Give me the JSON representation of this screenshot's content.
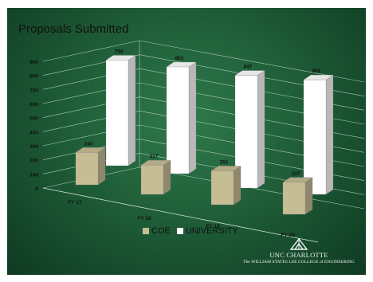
{
  "chart_data": {
    "type": "bar",
    "title": "Proposals Submitted",
    "categories": [
      "FY 17",
      "FY 18",
      "FY 19",
      "FY 20"
    ],
    "series": [
      {
        "name": "COE",
        "values": [
          240,
          217,
          251,
          237
        ],
        "color": "#c7bd95"
      },
      {
        "name": "UNIVERSITY",
        "values": [
          794,
          803,
          847,
          862
        ],
        "color": "#ffffff"
      }
    ],
    "y_ticks": [
      "0",
      "100",
      "200",
      "300",
      "400",
      "500",
      "600",
      "700",
      "800",
      "900"
    ],
    "ylim": [
      0,
      900
    ],
    "grid": true,
    "legend": "bottom",
    "style": "3d-clustered-column"
  },
  "branding": {
    "line1": "UNC CHARLOTTE",
    "line2": "The WILLIAM STATES LEE COLLEGE of ENGINEERING"
  },
  "colors": {
    "background": "#1f5e38",
    "coe_bar": "#c7bd95",
    "university_bar": "#ffffff"
  }
}
